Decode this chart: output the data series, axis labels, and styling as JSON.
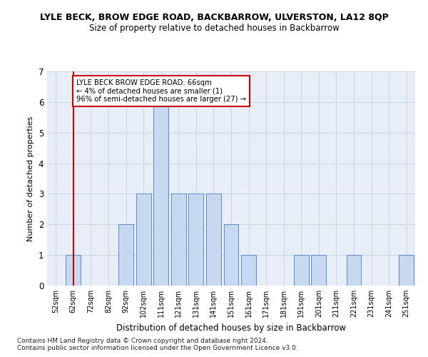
{
  "title1": "LYLE BECK, BROW EDGE ROAD, BACKBARROW, ULVERSTON, LA12 8QP",
  "title2": "Size of property relative to detached houses in Backbarrow",
  "xlabel": "Distribution of detached houses by size in Backbarrow",
  "ylabel": "Number of detached properties",
  "footnote1": "Contains HM Land Registry data © Crown copyright and database right 2024.",
  "footnote2": "Contains public sector information licensed under the Open Government Licence v3.0.",
  "categories": [
    "52sqm",
    "62sqm",
    "72sqm",
    "82sqm",
    "92sqm",
    "102sqm",
    "111sqm",
    "121sqm",
    "131sqm",
    "141sqm",
    "151sqm",
    "161sqm",
    "171sqm",
    "181sqm",
    "191sqm",
    "201sqm",
    "211sqm",
    "221sqm",
    "231sqm",
    "241sqm",
    "251sqm"
  ],
  "values": [
    0,
    1,
    0,
    0,
    2,
    3,
    6,
    3,
    3,
    3,
    2,
    1,
    0,
    0,
    1,
    1,
    0,
    1,
    0,
    0,
    1
  ],
  "bar_color": "#c6d9f0",
  "bar_edge_color": "#5b8bc9",
  "subject_line_index": 1,
  "subject_line_color": "#cc0000",
  "ylim": [
    0,
    7
  ],
  "yticks": [
    0,
    1,
    2,
    3,
    4,
    5,
    6,
    7
  ],
  "annotation_line1": "LYLE BECK BROW EDGE ROAD: 66sqm",
  "annotation_line2": "← 4% of detached houses are smaller (1)",
  "annotation_line3": "96% of semi-detached houses are larger (27) →",
  "annotation_box_color": "#ffffff",
  "annotation_box_edge_color": "#cc0000",
  "background_color": "#ffffff",
  "plot_bg_color": "#e8eef7",
  "grid_color": "#c8d4e8"
}
